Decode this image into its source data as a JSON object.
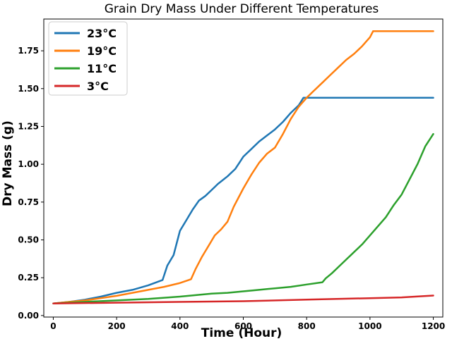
{
  "chart_data": {
    "type": "line",
    "title": "Grain Dry Mass Under Different Temperatures",
    "xlabel": "Time (Hour)",
    "ylabel": "Dry Mass (g)",
    "xlim": [
      -30,
      1230
    ],
    "ylim": [
      -0.01,
      1.96
    ],
    "xticks": [
      0,
      200,
      400,
      600,
      800,
      1000,
      1200
    ],
    "yticks": [
      0.0,
      0.25,
      0.5,
      0.75,
      1.0,
      1.25,
      1.5,
      1.75
    ],
    "grid": false,
    "legend_position": "top-left",
    "series": [
      {
        "name": "23°C",
        "color": "#1f77b4",
        "points": [
          [
            0,
            0.08
          ],
          [
            50,
            0.09
          ],
          [
            100,
            0.105
          ],
          [
            150,
            0.125
          ],
          [
            200,
            0.15
          ],
          [
            250,
            0.17
          ],
          [
            300,
            0.2
          ],
          [
            345,
            0.235
          ],
          [
            360,
            0.33
          ],
          [
            380,
            0.4
          ],
          [
            400,
            0.56
          ],
          [
            420,
            0.63
          ],
          [
            440,
            0.7
          ],
          [
            460,
            0.76
          ],
          [
            480,
            0.79
          ],
          [
            500,
            0.83
          ],
          [
            520,
            0.87
          ],
          [
            550,
            0.92
          ],
          [
            575,
            0.97
          ],
          [
            600,
            1.05
          ],
          [
            625,
            1.1
          ],
          [
            650,
            1.15
          ],
          [
            675,
            1.19
          ],
          [
            700,
            1.23
          ],
          [
            725,
            1.28
          ],
          [
            750,
            1.34
          ],
          [
            775,
            1.39
          ],
          [
            790,
            1.44
          ],
          [
            800,
            1.44
          ],
          [
            1200,
            1.44
          ]
        ]
      },
      {
        "name": "19°C",
        "color": "#ff7f0e",
        "points": [
          [
            0,
            0.08
          ],
          [
            50,
            0.09
          ],
          [
            100,
            0.1
          ],
          [
            150,
            0.115
          ],
          [
            200,
            0.13
          ],
          [
            250,
            0.15
          ],
          [
            300,
            0.17
          ],
          [
            350,
            0.19
          ],
          [
            400,
            0.215
          ],
          [
            435,
            0.24
          ],
          [
            450,
            0.31
          ],
          [
            470,
            0.39
          ],
          [
            490,
            0.46
          ],
          [
            510,
            0.53
          ],
          [
            530,
            0.57
          ],
          [
            550,
            0.62
          ],
          [
            570,
            0.72
          ],
          [
            600,
            0.84
          ],
          [
            625,
            0.93
          ],
          [
            650,
            1.01
          ],
          [
            675,
            1.07
          ],
          [
            700,
            1.11
          ],
          [
            725,
            1.2
          ],
          [
            750,
            1.3
          ],
          [
            775,
            1.38
          ],
          [
            800,
            1.44
          ],
          [
            825,
            1.49
          ],
          [
            850,
            1.54
          ],
          [
            875,
            1.59
          ],
          [
            900,
            1.64
          ],
          [
            925,
            1.69
          ],
          [
            950,
            1.73
          ],
          [
            975,
            1.78
          ],
          [
            1000,
            1.84
          ],
          [
            1010,
            1.88
          ],
          [
            1200,
            1.88
          ]
        ]
      },
      {
        "name": "11°C",
        "color": "#2ca02c",
        "points": [
          [
            0,
            0.08
          ],
          [
            100,
            0.09
          ],
          [
            200,
            0.1
          ],
          [
            300,
            0.11
          ],
          [
            400,
            0.125
          ],
          [
            450,
            0.135
          ],
          [
            500,
            0.145
          ],
          [
            550,
            0.15
          ],
          [
            600,
            0.16
          ],
          [
            650,
            0.17
          ],
          [
            700,
            0.18
          ],
          [
            750,
            0.19
          ],
          [
            800,
            0.205
          ],
          [
            850,
            0.22
          ],
          [
            860,
            0.245
          ],
          [
            880,
            0.28
          ],
          [
            900,
            0.32
          ],
          [
            925,
            0.37
          ],
          [
            950,
            0.42
          ],
          [
            975,
            0.47
          ],
          [
            1000,
            0.53
          ],
          [
            1025,
            0.59
          ],
          [
            1050,
            0.65
          ],
          [
            1075,
            0.73
          ],
          [
            1100,
            0.8
          ],
          [
            1125,
            0.9
          ],
          [
            1150,
            1.0
          ],
          [
            1175,
            1.12
          ],
          [
            1200,
            1.2
          ]
        ]
      },
      {
        "name": "3°C",
        "color": "#d62728",
        "points": [
          [
            0,
            0.08
          ],
          [
            200,
            0.085
          ],
          [
            400,
            0.09
          ],
          [
            600,
            0.095
          ],
          [
            800,
            0.105
          ],
          [
            1000,
            0.115
          ],
          [
            1100,
            0.12
          ],
          [
            1200,
            0.132
          ]
        ]
      }
    ]
  }
}
